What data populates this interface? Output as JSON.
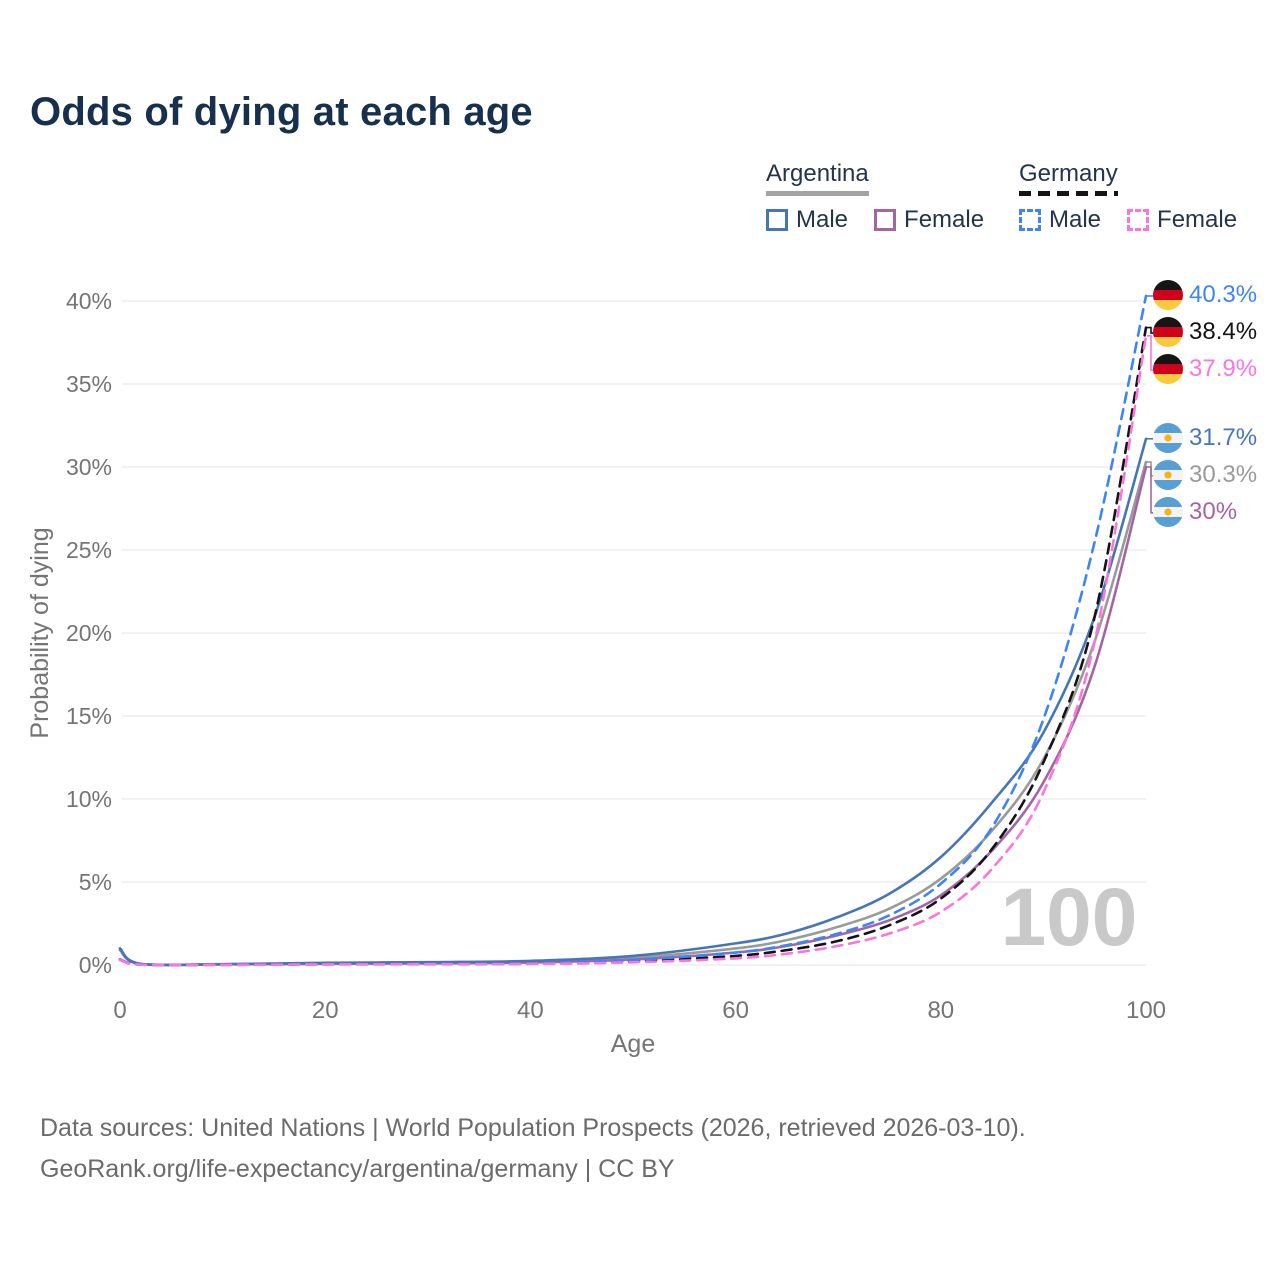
{
  "title": "Odds of dying at each age",
  "watermark": "100",
  "legend": {
    "groups": [
      {
        "label": "Argentina",
        "line_style": "solid",
        "underline_color": "#a3a3a3",
        "items": [
          {
            "label": "Male",
            "color": "#4576b5"
          },
          {
            "label": "Female",
            "color": "#a565a5"
          }
        ]
      },
      {
        "label": "Germany",
        "line_style": "dashed",
        "underline_color": "#141414",
        "items": [
          {
            "label": "Male",
            "color": "#3d85f7"
          },
          {
            "label": "Female",
            "color": "#fc74df"
          }
        ]
      }
    ]
  },
  "chart_data": {
    "type": "line",
    "title": "Odds of dying at each age",
    "xlabel": "Age",
    "ylabel": "Probability of dying",
    "xlim": [
      0,
      100
    ],
    "ylim_pct": [
      0,
      42
    ],
    "x_ticks": [
      0,
      20,
      40,
      60,
      80,
      100
    ],
    "y_ticks_pct": [
      0,
      5,
      10,
      15,
      20,
      25,
      30,
      35,
      40
    ],
    "y_tick_labels": [
      "0%",
      "5%",
      "10%",
      "15%",
      "20%",
      "25%",
      "30%",
      "35%",
      "40%"
    ],
    "grid": true,
    "legend_position": "top-right",
    "x": [
      0,
      2,
      10,
      20,
      30,
      40,
      50,
      60,
      65,
      70,
      75,
      80,
      85,
      90,
      95,
      100
    ],
    "series": [
      {
        "name": "Argentina",
        "key": "argentina-all",
        "color": "#9a9a9a",
        "dash": "solid",
        "values_pct": [
          0.95,
          0.06,
          0.045,
          0.1,
          0.13,
          0.2,
          0.44,
          1.0,
          1.5,
          2.3,
          3.4,
          5.2,
          8.1,
          12.4,
          19.5,
          30.3
        ],
        "end_value_pct": 30.3,
        "end_label": "30.3%",
        "flag": "ar",
        "label_color": "#9a9a9a"
      },
      {
        "name": "Argentina Female",
        "key": "argentina-female",
        "color": "#a565a5",
        "dash": "solid",
        "values_pct": [
          0.9,
          0.05,
          0.04,
          0.07,
          0.1,
          0.15,
          0.33,
          0.75,
          1.15,
          1.8,
          2.7,
          4.2,
          6.9,
          11.0,
          18.0,
          30.0
        ],
        "end_value_pct": 30.0,
        "end_label": "30%",
        "flag": "ar",
        "label_color": "#a565a5"
      },
      {
        "name": "Argentina Male",
        "key": "argentina-male",
        "color": "#4576b5",
        "dash": "solid",
        "values_pct": [
          1.0,
          0.07,
          0.05,
          0.13,
          0.17,
          0.25,
          0.55,
          1.3,
          1.9,
          2.9,
          4.3,
          6.5,
          9.8,
          14.0,
          21.0,
          31.7
        ],
        "end_value_pct": 31.7,
        "end_label": "31.7%",
        "flag": "ar",
        "label_color": "#4576b5"
      },
      {
        "name": "Germany",
        "key": "germany-all",
        "color": "#141414",
        "dash": "dashed",
        "values_pct": [
          0.33,
          0.025,
          0.012,
          0.04,
          0.055,
          0.08,
          0.22,
          0.55,
          0.9,
          1.45,
          2.4,
          4.0,
          7.0,
          12.2,
          21.0,
          38.4
        ],
        "end_value_pct": 38.4,
        "end_label": "38.4%",
        "flag": "de",
        "label_color": "#141414"
      },
      {
        "name": "Germany Male",
        "key": "germany-male",
        "color": "#3d85f7",
        "dash": "dashed",
        "values_pct": [
          0.35,
          0.03,
          0.015,
          0.05,
          0.07,
          0.1,
          0.3,
          0.75,
          1.2,
          1.9,
          3.0,
          4.9,
          8.3,
          14.8,
          25.5,
          40.3
        ],
        "end_value_pct": 40.3,
        "end_label": "40.3%",
        "flag": "de",
        "label_color": "#3d85f7"
      },
      {
        "name": "Germany Female",
        "key": "germany-female",
        "color": "#fc74df",
        "dash": "dashed",
        "values_pct": [
          0.3,
          0.02,
          0.01,
          0.03,
          0.04,
          0.06,
          0.16,
          0.4,
          0.68,
          1.15,
          1.9,
          3.2,
          5.8,
          10.4,
          19.5,
          37.9
        ],
        "end_value_pct": 37.9,
        "end_label": "37.9%",
        "flag": "de",
        "label_color": "#fc74df"
      }
    ]
  },
  "footer": {
    "line1": "Data sources: United Nations | World Population Prospects (2026, retrieved 2026-03-10).",
    "line2": "GeoRank.org/life-expectancy/argentina/germany | CC BY"
  }
}
